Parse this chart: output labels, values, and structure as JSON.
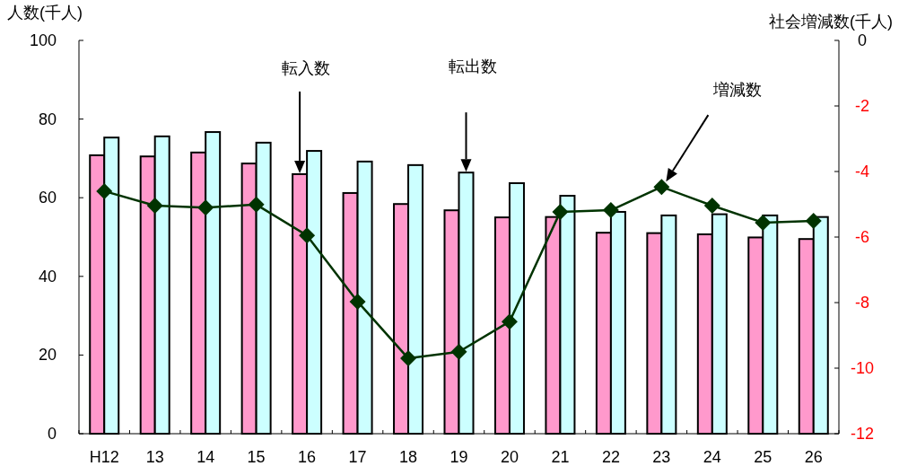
{
  "chart_data": {
    "type": "bar",
    "ylabel": "人数(千人)",
    "y2label": "社会増減数(千人)",
    "categories": [
      "H12",
      "13",
      "14",
      "15",
      "16",
      "17",
      "18",
      "19",
      "20",
      "21",
      "22",
      "23",
      "24",
      "25",
      "26"
    ],
    "series": [
      {
        "type": "bar",
        "color": "#ff99cc",
        "values": [
          70.8,
          70.5,
          71.5,
          68.7,
          66.0,
          61.2,
          58.4,
          56.8,
          55.0,
          55.1,
          51.1,
          51.0,
          50.7,
          49.9,
          49.5
        ]
      },
      {
        "type": "bar",
        "color": "#ccffff",
        "values": [
          75.3,
          75.6,
          76.7,
          74.0,
          71.9,
          69.2,
          68.3,
          66.4,
          63.7,
          60.5,
          56.4,
          55.5,
          55.8,
          55.5,
          55.1
        ]
      },
      {
        "type": "line",
        "axis": "y2",
        "color": "#003300",
        "values": [
          -4.6,
          -5.04,
          -5.1,
          -5.01,
          -5.95,
          -7.97,
          -9.7,
          -9.5,
          -8.58,
          -5.23,
          -5.18,
          -4.47,
          -5.04,
          -5.56,
          -5.51
        ]
      }
    ],
    "ylim": [
      0,
      100
    ],
    "yticks": [
      0,
      20,
      40,
      60,
      80,
      100
    ],
    "y2lim": [
      -12,
      0
    ],
    "y2ticks": [
      -12,
      -10,
      -8,
      -6,
      -4,
      -2,
      0
    ],
    "marker": "diamond",
    "line_style": "solid",
    "annotations": [
      "転入数",
      "転出数",
      "増減数"
    ]
  }
}
